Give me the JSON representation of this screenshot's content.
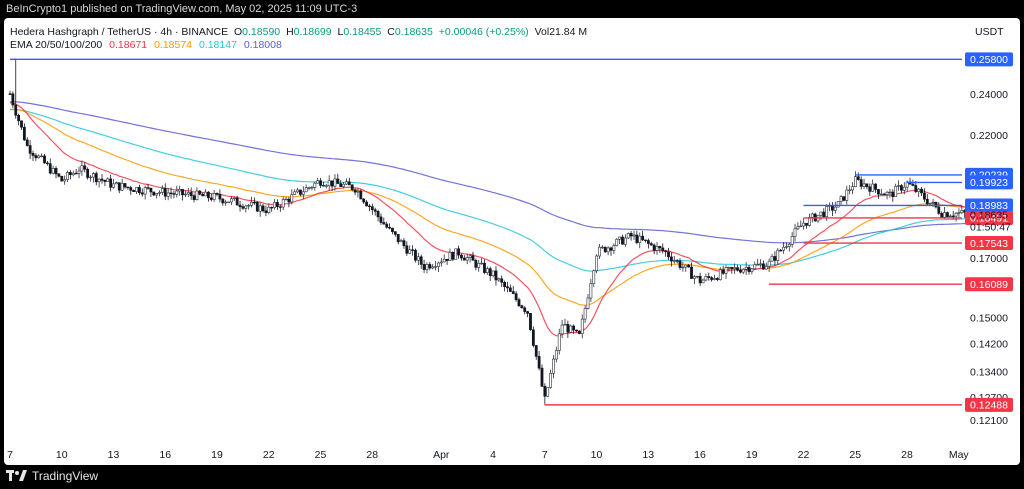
{
  "header": {
    "published": "BeInCrypto1 published on TradingView.com, May 02, 2025 11:09 UTC-3"
  },
  "legend": {
    "symbol": "Hedera Hashgraph / TetherUS · 4h · BINANCE",
    "ohlc": [
      {
        "label": "O",
        "value": "0.18590"
      },
      {
        "label": "H",
        "value": "0.18699"
      },
      {
        "label": "L",
        "value": "0.18455"
      },
      {
        "label": "C",
        "value": "0.18635"
      }
    ],
    "change": "+0.00046 (+0.25%)",
    "volume": "Vol21.84 M",
    "ema_label": "EMA 20/50/100/200",
    "ema_values": [
      "0.18671",
      "0.18574",
      "0.18147",
      "0.18008"
    ]
  },
  "colors": {
    "up": "#089981",
    "down": "#131722",
    "ema20": "#f23645",
    "ema50": "#ff9800",
    "ema100": "#26c6da",
    "ema200": "#5b5bd6",
    "resistance": "#2962ff",
    "support": "#f23645"
  },
  "footer": {
    "brand": "TradingView",
    "icon": "tradingview-logo-icon"
  },
  "chart_data": {
    "type": "candlestick",
    "unit": "USDT",
    "y_scale": "log",
    "ylim": [
      0.116,
      0.262
    ],
    "y_ticks": [
      "0.24000",
      "0.22000",
      "0.15000",
      "0.14200",
      "0.13400",
      "0.12700",
      "0.12100"
    ],
    "x_ticks": [
      "7",
      "10",
      "13",
      "16",
      "19",
      "22",
      "25",
      "28",
      "Apr",
      "4",
      "7",
      "10",
      "13",
      "16",
      "19",
      "22",
      "25",
      "28",
      "May"
    ],
    "current_price": "0.18635",
    "countdown": "01:50:47",
    "hidden_label": "0.17000",
    "price_path": [
      [
        "7",
        0.24
      ],
      [
        "8",
        0.215
      ],
      [
        "10",
        0.2
      ],
      [
        "11",
        0.205
      ],
      [
        "13",
        0.198
      ],
      [
        "16",
        0.195
      ],
      [
        "19",
        0.193
      ],
      [
        "22",
        0.188
      ],
      [
        "25",
        0.2
      ],
      [
        "27",
        0.197
      ],
      [
        "29",
        0.18
      ],
      [
        "31",
        0.167
      ],
      [
        "Apr 2",
        0.172
      ],
      [
        "Apr 4",
        0.164
      ],
      [
        "Apr 6",
        0.152
      ],
      [
        "Apr 7",
        0.126
      ],
      [
        "Apr 8",
        0.148
      ],
      [
        "Apr 9",
        0.144
      ],
      [
        "Apr 10",
        0.172
      ],
      [
        "Apr 12",
        0.178
      ],
      [
        "Apr 14",
        0.172
      ],
      [
        "Apr 16",
        0.162
      ],
      [
        "Apr 18",
        0.166
      ],
      [
        "Apr 20",
        0.168
      ],
      [
        "Apr 22",
        0.183
      ],
      [
        "Apr 24",
        0.19
      ],
      [
        "Apr 25",
        0.2
      ],
      [
        "Apr 27",
        0.194
      ],
      [
        "Apr 28",
        0.199
      ],
      [
        "Apr 30",
        0.187
      ],
      [
        "May 2",
        0.18635
      ]
    ],
    "levels": [
      {
        "value": "0.25800",
        "kind": "resistance",
        "from": "7"
      },
      {
        "value": "0.20239",
        "kind": "resistance",
        "from": "Apr 25"
      },
      {
        "value": "0.19923",
        "kind": "resistance",
        "from": "Apr 28"
      },
      {
        "value": "0.18983",
        "kind": "resistance",
        "from": "Apr 22"
      },
      {
        "value": "0.18491",
        "kind": "support",
        "from": "Apr 22"
      },
      {
        "value": "0.17543",
        "kind": "support",
        "from": "Apr 22"
      },
      {
        "value": "0.16089",
        "kind": "support",
        "from": "Apr 20"
      },
      {
        "value": "0.12488",
        "kind": "support",
        "from": "Apr 7"
      }
    ]
  }
}
